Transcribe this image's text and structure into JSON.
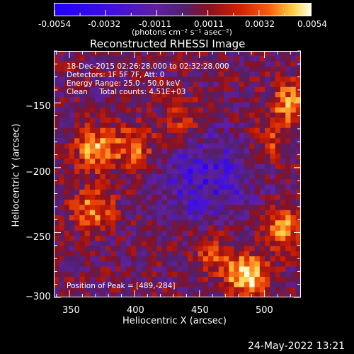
{
  "colorbar": {
    "tick_labels": [
      "-0.0054",
      "-0.0032",
      "-0.0011",
      "0.0011",
      "0.0032",
      "0.0054"
    ],
    "unit_label": "(photons cm⁻² s⁻¹ asec⁻²)"
  },
  "chart_data": {
    "type": "heatmap",
    "title": "Reconstructed RHESSI Image",
    "xlabel": "Heliocentric X (arcsec)",
    "ylabel": "Heliocentric Y (arcsec)",
    "xlim": [
      338,
      528
    ],
    "ylim": [
      -300,
      -110
    ],
    "x_ticks": [
      350,
      400,
      450,
      500
    ],
    "y_ticks": [
      -300,
      -250,
      -200,
      -150
    ],
    "x_tick_labels": [
      "350",
      "400",
      "450",
      "500"
    ],
    "y_tick_labels": [
      "−300",
      "−250",
      "−200",
      "−150"
    ],
    "zlim": [
      -0.0054,
      0.0054
    ],
    "colormap": [
      "#2000ff",
      "#4010e0",
      "#6020a0",
      "#502070",
      "#8a1020",
      "#d02000",
      "#f86010",
      "#ffd040",
      "#ffffe8"
    ],
    "annotations": [
      "18-Dec-2015 02:26:28.000 to 02:32:28.000",
      "Detectors: 1F 5F 7F, Att: 0",
      "Energy Range: 25.0 - 50.0 keV",
      "Clean     Total counts: 4.51E+03"
    ],
    "peak_label": "Position of Peak = [489,-284]",
    "sources": [
      {
        "x": 487,
        "y": -283,
        "strength": 1.0
      },
      {
        "x": 370,
        "y": -186,
        "strength": 0.75
      },
      {
        "x": 400,
        "y": -184,
        "strength": 0.6
      },
      {
        "x": 368,
        "y": -232,
        "strength": 0.6
      },
      {
        "x": 520,
        "y": -150,
        "strength": 0.7
      },
      {
        "x": 515,
        "y": -245,
        "strength": 0.65
      },
      {
        "x": 438,
        "y": -164,
        "strength": 0.45
      },
      {
        "x": 460,
        "y": -265,
        "strength": 0.45
      },
      {
        "x": 505,
        "y": -180,
        "strength": 0.4
      }
    ],
    "minimum": {
      "x": 455,
      "y": -208,
      "strength": 0.8
    }
  },
  "timestamp": "24-May-2022 13:21"
}
